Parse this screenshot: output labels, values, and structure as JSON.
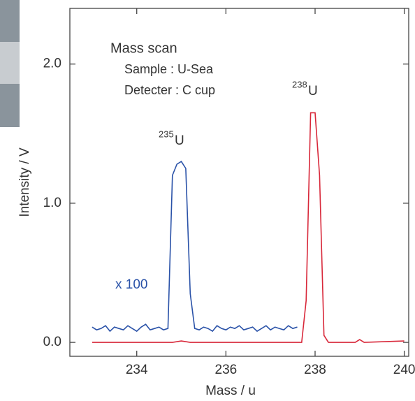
{
  "chart_data": {
    "type": "line",
    "xlabel": "Mass / u",
    "ylabel": "Intensity / V",
    "xlim": [
      232.5,
      240.1
    ],
    "ylim": [
      -0.1,
      2.4
    ],
    "xticks": [
      234,
      236,
      238,
      240
    ],
    "yticks": [
      {
        "value": 0,
        "label": "0.0"
      },
      {
        "value": 1,
        "label": "1.0"
      },
      {
        "value": 2,
        "label": "2.0"
      }
    ],
    "annotations": {
      "title": "Mass scan",
      "sample": "Sample : U-Sea",
      "detector": "Detecter : C cup",
      "peak1_mass": "235",
      "peak1_element": "U",
      "peak2_mass": "238",
      "peak2_element": "U",
      "scale": "x 100"
    },
    "series": [
      {
        "color": "#2a52a8",
        "x": [
          233.0,
          233.1,
          233.2,
          233.3,
          233.4,
          233.5,
          233.6,
          233.7,
          233.8,
          233.9,
          234.0,
          234.1,
          234.2,
          234.3,
          234.4,
          234.5,
          234.6,
          234.7,
          234.8,
          234.9,
          235.0,
          235.1,
          235.2,
          235.3,
          235.4,
          235.5,
          235.6,
          235.7,
          235.8,
          235.9,
          236.0,
          236.1,
          236.2,
          236.3,
          236.4,
          236.5,
          236.6,
          236.7,
          236.8,
          236.9,
          237.0,
          237.1,
          237.2,
          237.3,
          237.4,
          237.5,
          237.6
        ],
        "values": [
          0.11,
          0.09,
          0.1,
          0.12,
          0.08,
          0.11,
          0.1,
          0.09,
          0.12,
          0.1,
          0.08,
          0.11,
          0.13,
          0.09,
          0.1,
          0.11,
          0.09,
          0.1,
          1.2,
          1.28,
          1.3,
          1.25,
          0.35,
          0.1,
          0.09,
          0.11,
          0.1,
          0.08,
          0.12,
          0.1,
          0.09,
          0.11,
          0.1,
          0.12,
          0.09,
          0.1,
          0.11,
          0.08,
          0.1,
          0.12,
          0.09,
          0.11,
          0.1,
          0.09,
          0.12,
          0.1,
          0.11
        ]
      },
      {
        "color": "#d8283a",
        "x": [
          233.0,
          234.8,
          235.0,
          235.2,
          237.7,
          237.8,
          237.9,
          238.0,
          238.1,
          238.2,
          238.3,
          238.9,
          239.0,
          239.1,
          240.0
        ],
        "values": [
          0,
          0,
          0.01,
          0,
          0,
          0.3,
          1.65,
          1.65,
          1.2,
          0.05,
          0,
          0,
          0.02,
          0,
          0.01
        ]
      }
    ]
  }
}
